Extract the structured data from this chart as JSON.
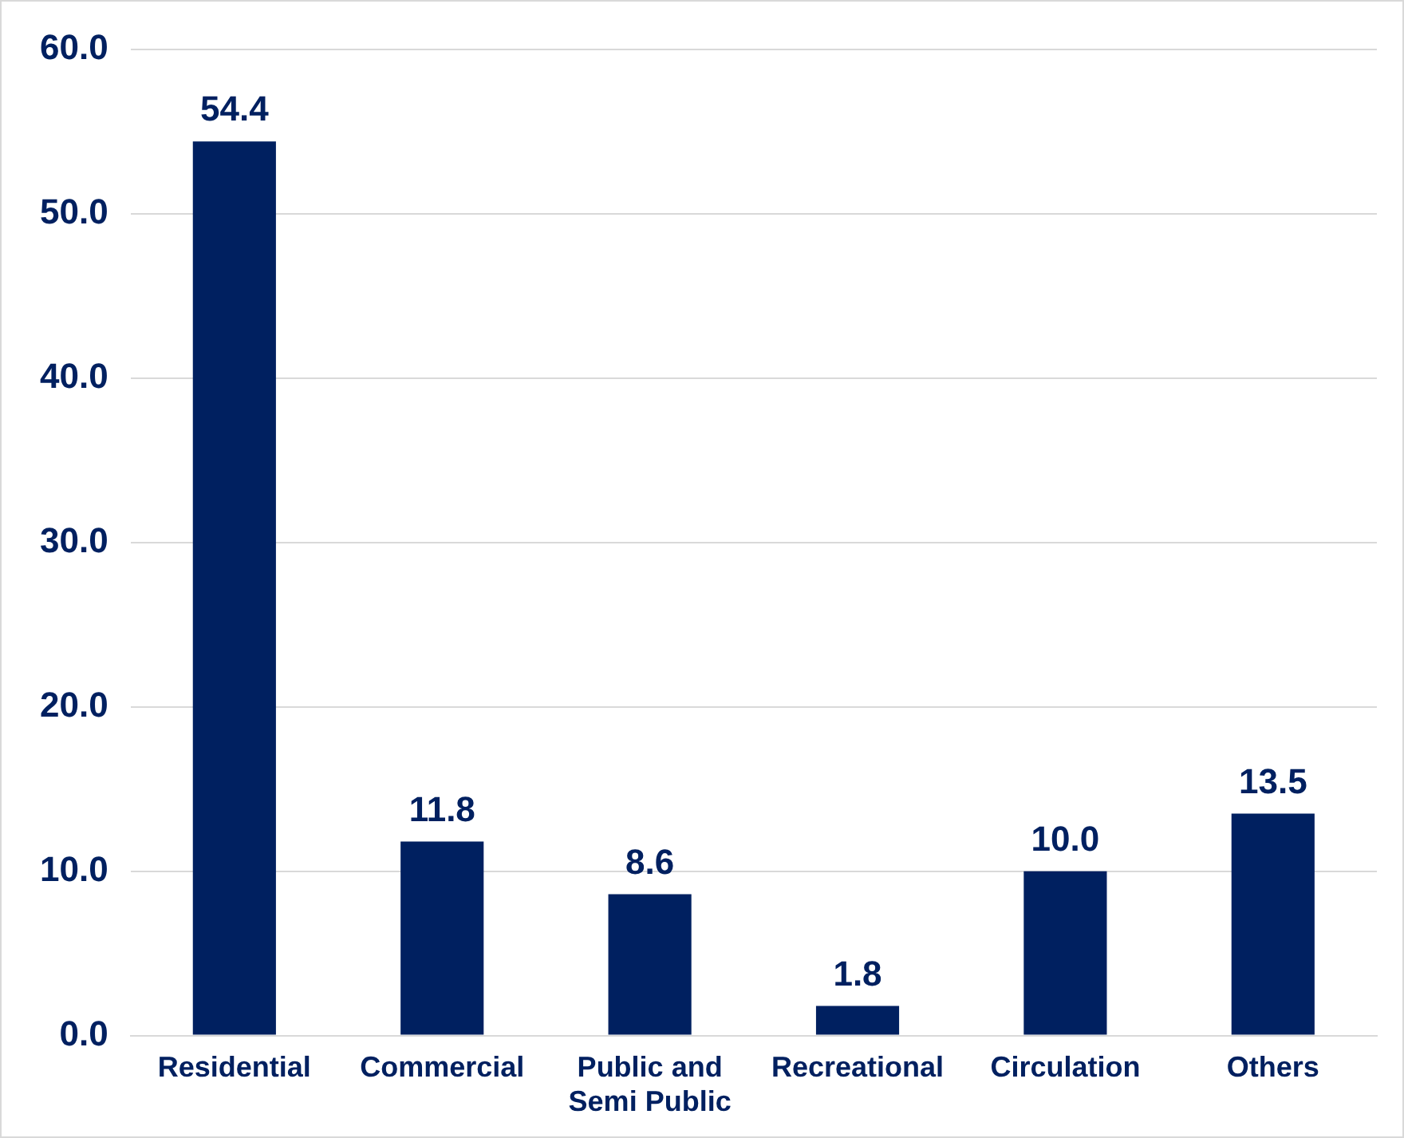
{
  "chart_data": {
    "type": "bar",
    "categories": [
      "Residential",
      "Commercial",
      "Public and Semi Public",
      "Recreational",
      "Circulation",
      "Others"
    ],
    "values": [
      54.4,
      11.8,
      8.6,
      1.8,
      10.0,
      13.5
    ],
    "value_labels": [
      "54.4",
      "11.8",
      "8.6",
      "1.8",
      "10.0",
      "13.5"
    ],
    "color": "#002060",
    "ylim": [
      0,
      60
    ],
    "yticks": [
      {
        "value": 0,
        "label": "0.0"
      },
      {
        "value": 10,
        "label": "10.0"
      },
      {
        "value": 20,
        "label": "20.0"
      },
      {
        "value": 30,
        "label": "30.0"
      },
      {
        "value": 40,
        "label": "40.0"
      },
      {
        "value": 50,
        "label": "50.0"
      },
      {
        "value": 60,
        "label": "60.0"
      }
    ],
    "grid": "y"
  }
}
